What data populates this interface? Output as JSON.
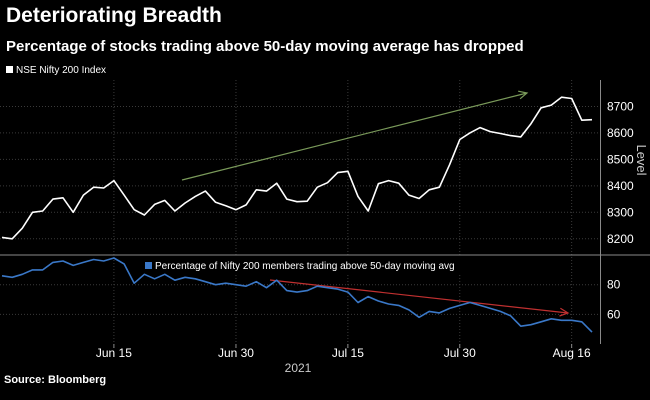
{
  "title": "Deteriorating Breadth",
  "subtitle": "Percentage of stocks trading above 50-day moving average has dropped",
  "source": "Source: Bloomberg",
  "colors": {
    "background": "#000000",
    "grid": "#3a3a3a",
    "index_line": "#ffffff",
    "breadth_line": "#3a78c8",
    "up_arrow": "#7a9a5a",
    "down_arrow": "#c03030"
  },
  "chart_data": [
    {
      "type": "line",
      "panel": "top",
      "series": [
        {
          "name": "NSE Nifty 200 Index",
          "values": [
            8205,
            8200,
            8240,
            8300,
            8305,
            8350,
            8355,
            8300,
            8365,
            8395,
            8392,
            8420,
            8365,
            8310,
            8290,
            8330,
            8345,
            8305,
            8335,
            8360,
            8380,
            8338,
            8325,
            8310,
            8328,
            8385,
            8380,
            8410,
            8350,
            8340,
            8342,
            8395,
            8412,
            8450,
            8455,
            8360,
            8305,
            8408,
            8420,
            8410,
            8365,
            8352,
            8385,
            8395,
            8480,
            8575,
            8600,
            8620,
            8605,
            8598,
            8590,
            8585,
            8635,
            8695,
            8705,
            8735,
            8730,
            8648,
            8650
          ]
        }
      ],
      "ylabel": "Level",
      "ylim": [
        8150,
        8800
      ],
      "yticks": [
        8200,
        8300,
        8400,
        8500,
        8600,
        8700
      ],
      "annotation": "upward trend arrow"
    },
    {
      "type": "line",
      "panel": "bottom",
      "series": [
        {
          "name": "Percentage of Nifty 200 members trading above 50-day moving avg",
          "values": [
            86,
            85,
            87,
            90,
            90,
            95,
            96,
            93,
            95,
            97,
            96,
            98,
            94,
            81,
            87,
            84,
            87,
            83,
            85,
            84,
            82,
            80,
            81,
            80,
            79,
            82,
            78,
            83,
            76,
            75,
            76,
            79,
            78,
            77,
            75,
            68,
            72,
            69,
            67,
            66,
            63,
            58,
            62,
            61,
            64,
            66,
            68,
            66,
            64,
            62,
            59,
            52,
            53,
            55,
            57,
            56,
            56,
            55,
            48
          ]
        }
      ],
      "ylim": [
        40,
        98
      ],
      "yticks": [
        60,
        80
      ],
      "annotation": "downward trend arrow"
    }
  ],
  "x_axis": {
    "ticks": [
      "Jun 15",
      "Jun 30",
      "Jul 15",
      "Jul 30",
      "Aug 16"
    ],
    "year": "2021"
  }
}
